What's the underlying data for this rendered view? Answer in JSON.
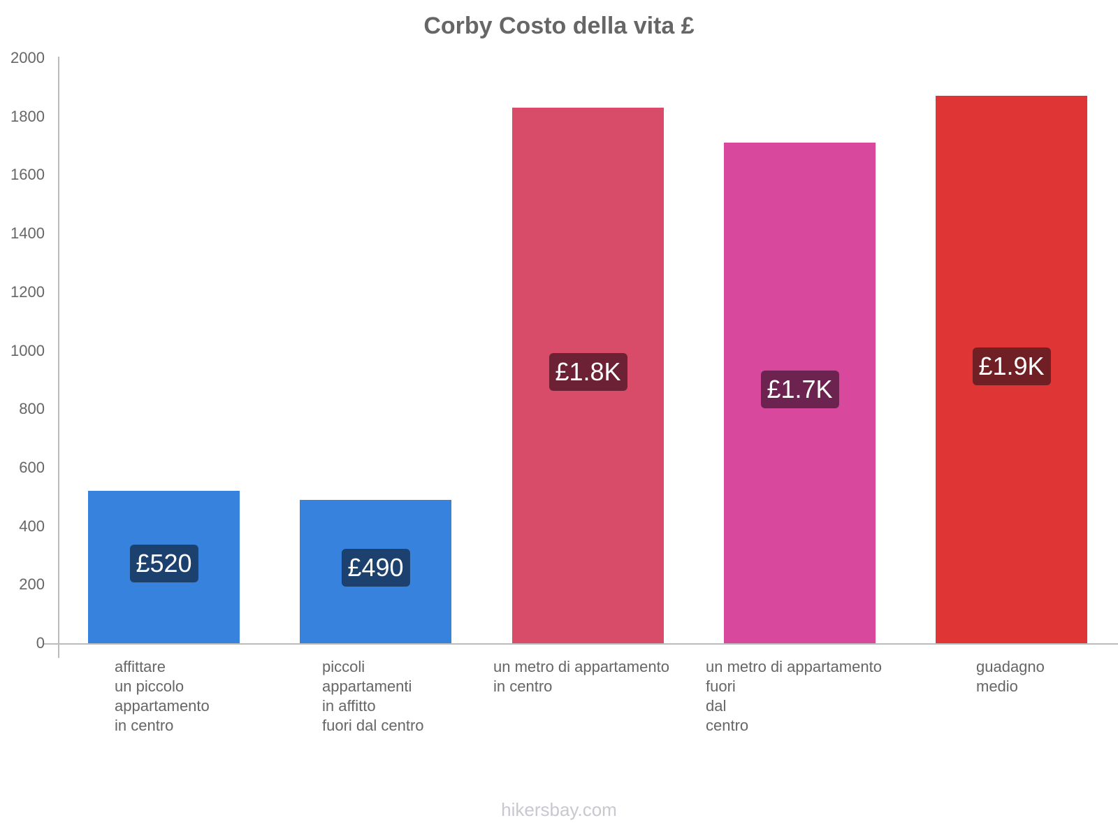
{
  "title": "Corby Costo della vita £",
  "footer": "hikersbay.com",
  "y_ticks": [
    "0",
    "200",
    "400",
    "600",
    "800",
    "1000",
    "1200",
    "1400",
    "1600",
    "1800",
    "2000"
  ],
  "bars": [
    {
      "category": "affittare\nun piccolo\nappartamento\nin centro",
      "value": 520,
      "label": "£520",
      "color": "#3682dc",
      "label_bg": "#1d416e"
    },
    {
      "category": "piccoli\nappartamenti\nin affitto\nfuori dal centro",
      "value": 490,
      "label": "£490",
      "color": "#3682dc",
      "label_bg": "#1d416e"
    },
    {
      "category": "un metro di appartamento\nin centro",
      "value": 1830,
      "label": "£1.8K",
      "color": "#d84b69",
      "label_bg": "#6c2135"
    },
    {
      "category": "un metro di appartamento\nfuori\ndal\ncentro",
      "value": 1710,
      "label": "£1.7K",
      "color": "#d8489c",
      "label_bg": "#6c234f"
    },
    {
      "category": "guadagno\nmedio",
      "value": 1870,
      "label": "£1.9K",
      "color": "#e03535",
      "label_bg": "#701f25"
    }
  ],
  "chart_data": {
    "type": "bar",
    "title": "Corby Costo della vita £",
    "xlabel": "",
    "ylabel": "",
    "categories": [
      "affittare un piccolo appartamento in centro",
      "piccoli appartamenti in affitto fuori dal centro",
      "un metro di appartamento in centro",
      "un metro di appartamento fuori dal centro",
      "guadagno medio"
    ],
    "values": [
      520,
      490,
      1830,
      1710,
      1870
    ],
    "data_labels": [
      "£520",
      "£490",
      "£1.8K",
      "£1.7K",
      "£1.9K"
    ],
    "colors": [
      "#3682dc",
      "#3682dc",
      "#d84b69",
      "#d8489c",
      "#e03535"
    ],
    "ylim": [
      0,
      2000
    ],
    "y_ticks": [
      0,
      200,
      400,
      600,
      800,
      1000,
      1200,
      1400,
      1600,
      1800,
      2000
    ],
    "grid": false,
    "legend": "none"
  }
}
